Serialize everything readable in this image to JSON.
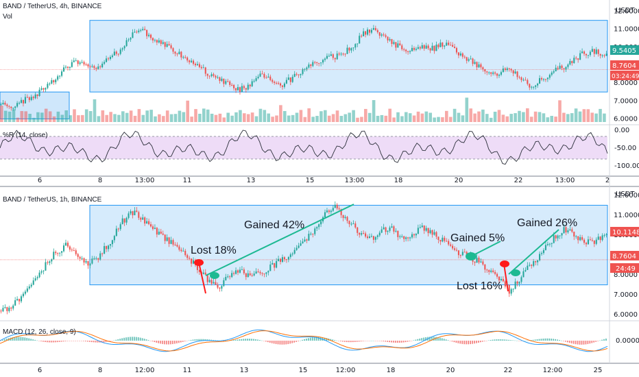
{
  "colors": {
    "up": "#26a69a",
    "down": "#ef5350",
    "box_fill": "#cfe7fb",
    "box_stroke": "#2196f3",
    "trend": "#1db992",
    "lost_mark": "#ff1a1a",
    "rsi_band": "#eedcf7",
    "macd": "#2196f3",
    "signal": "#ff6d00",
    "price_tag": "#ef5350",
    "price_tag_green": "#26a69a",
    "countdown_tag": "#ef5350"
  },
  "top_panel": {
    "title": "BAND / TetherUS, 4h, BINANCE",
    "sub": "Vol",
    "currency": "USDT",
    "y_ticks": [
      "12.0000",
      "11.0000",
      "10.0000",
      "9.0000",
      "8.0000",
      "7.0000",
      "6.0000"
    ],
    "last_price_label": "9.5405",
    "ref_price_label": "8.7604",
    "countdown": "03:24:49",
    "osc_title": "%R (14, close)",
    "osc_ticks": [
      "0.00",
      "-50.00",
      "-100.00"
    ]
  },
  "bottom_panel": {
    "title": "BAND / TetherUS, 1h, BINANCE",
    "currency": "USDT",
    "y_ticks": [
      "12.0000",
      "11.0000",
      "10.0000",
      "9.0000",
      "8.0000",
      "7.0000",
      "6.0000"
    ],
    "last_price_label": "10.1148",
    "ref_price_label": "8.7604",
    "countdown": "24:49",
    "macd_title": "MACD (12, 26, close, 9)",
    "macd_ticks": [
      "0.0000"
    ]
  },
  "x_axis_top": [
    "6",
    "8",
    "13:00",
    "11",
    "13",
    "15",
    "13:00",
    "18",
    "20",
    "22",
    "13:00",
    "2"
  ],
  "x_axis_bottom": [
    "6",
    "8",
    "12:00",
    "11",
    "13",
    "15",
    "12:00",
    "18",
    "20",
    "22",
    "12:00",
    "25"
  ],
  "annotations": [
    {
      "text": "Lost 18%"
    },
    {
      "text": "Gained 42%"
    },
    {
      "text": "Gained 5%"
    },
    {
      "text": "Lost 16%"
    },
    {
      "text": "Gained 26%"
    }
  ],
  "chart_data": [
    {
      "type": "candlestick",
      "title": "BAND / TetherUS, 4h, BINANCE",
      "ylim": [
        5.9,
        12.1
      ],
      "close_path": [
        6.8,
        6.7,
        7.0,
        7.2,
        7.8,
        8.2,
        8.9,
        9.2,
        9.0,
        8.8,
        9.4,
        9.8,
        10.6,
        11.0,
        10.5,
        10.2,
        9.8,
        9.4,
        9.0,
        8.6,
        8.3,
        8.0,
        7.6,
        7.9,
        8.4,
        8.1,
        7.9,
        8.3,
        8.8,
        9.2,
        9.4,
        9.5,
        9.8,
        10.4,
        11.0,
        10.8,
        10.4,
        9.9,
        9.8,
        10.0,
        9.9,
        10.2,
        9.8,
        9.4,
        9.0,
        8.7,
        8.5,
        8.9,
        8.3,
        7.8,
        8.2,
        8.6,
        8.9,
        9.3,
        9.7,
        9.8,
        9.5
      ],
      "overlay_box": {
        "y_top": 11.5,
        "y_bottom": 7.5
      },
      "early_box": {
        "y_top": 7.5,
        "y_bottom": 6.0
      },
      "ref_line": 8.7604,
      "last": 9.5405
    },
    {
      "type": "candlestick",
      "title": "BAND / TetherUS, 1h, BINANCE",
      "ylim": [
        5.9,
        12.1
      ],
      "close_path": [
        6.2,
        6.4,
        7.0,
        7.6,
        8.4,
        9.1,
        9.5,
        9.0,
        8.6,
        8.9,
        9.6,
        10.5,
        11.2,
        10.8,
        10.3,
        9.9,
        9.5,
        9.0,
        8.5,
        7.8,
        7.3,
        7.9,
        8.2,
        7.9,
        8.1,
        8.4,
        8.8,
        9.1,
        9.6,
        10.3,
        11.1,
        11.4,
        10.8,
        10.2,
        9.8,
        10.1,
        10.4,
        9.9,
        10.0,
        10.4,
        10.1,
        9.7,
        9.2,
        9.0,
        8.7,
        8.3,
        7.9,
        7.2,
        7.8,
        8.5,
        9.1,
        9.8,
        10.3,
        10.1,
        9.6,
        9.7,
        10.1
      ],
      "overlay_box": {
        "y_top": 11.5,
        "y_bottom": 7.5
      },
      "ref_line": 8.7604,
      "last": 10.1148
    }
  ]
}
